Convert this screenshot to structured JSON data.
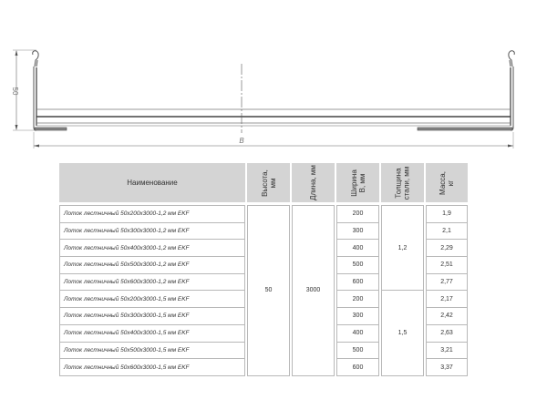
{
  "drawing": {
    "height_label": "50",
    "width_label": "B"
  },
  "table": {
    "headers": [
      "Наименование",
      "Высота,\nмм",
      "Длина, мм",
      "Ширина\nB, мм",
      "Толщина\nстали, мм",
      "Масса,\nкг"
    ],
    "height_value": "50",
    "length_value": "3000",
    "thickness_groups": [
      "1,2",
      "1,5"
    ],
    "rows": [
      {
        "name": "Лоток лестничный 50х200х3000-1,2 мм EKF",
        "width": "200",
        "mass": "1,9"
      },
      {
        "name": "Лоток лестничный 50х300х3000-1,2 мм EKF",
        "width": "300",
        "mass": "2,1"
      },
      {
        "name": "Лоток лестничный 50х400х3000-1,2 мм EKF",
        "width": "400",
        "mass": "2,29"
      },
      {
        "name": "Лоток лестничный 50х500х3000-1,2 мм EKF",
        "width": "500",
        "mass": "2,51"
      },
      {
        "name": "Лоток лестничный 50х600х3000-1,2 мм EKF",
        "width": "600",
        "mass": "2,77"
      },
      {
        "name": "Лоток лестничный 50х200х3000-1,5 мм EKF",
        "width": "200",
        "mass": "2,17"
      },
      {
        "name": "Лоток лестничный 50х300х3000-1,5 мм EKF",
        "width": "300",
        "mass": "2,42"
      },
      {
        "name": "Лоток лестничный 50х400х3000-1,5 мм EKF",
        "width": "400",
        "mass": "2,63"
      },
      {
        "name": "Лоток лестничный 50х500х3000-1,5 мм EKF",
        "width": "500",
        "mass": "3,21"
      },
      {
        "name": "Лоток лестничный 50х600х3000-1,5 мм EKF",
        "width": "600",
        "mass": "3,37"
      }
    ]
  }
}
